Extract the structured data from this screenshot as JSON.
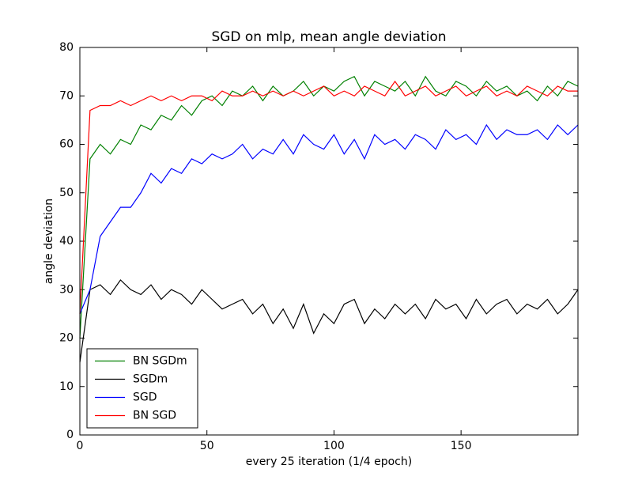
{
  "chart_data": {
    "type": "line",
    "title": "SGD on mlp, mean angle deviation",
    "x_label": "every 25 iteration (1/4 epoch)",
    "y_label": "angle deviation",
    "x": [
      0,
      4,
      8,
      12,
      16,
      20,
      24,
      28,
      32,
      36,
      40,
      44,
      48,
      52,
      56,
      60,
      64,
      68,
      72,
      76,
      80,
      84,
      88,
      92,
      96,
      100,
      104,
      108,
      112,
      116,
      120,
      124,
      128,
      132,
      136,
      140,
      144,
      148,
      152,
      156,
      160,
      164,
      168,
      172,
      176,
      180,
      184,
      188,
      192,
      196
    ],
    "series": [
      {
        "name": "BN SGDm",
        "color": "#008000",
        "values": [
          20,
          57,
          60,
          58,
          61,
          60,
          64,
          63,
          66,
          65,
          68,
          66,
          69,
          70,
          68,
          71,
          70,
          72,
          69,
          72,
          70,
          71,
          73,
          70,
          72,
          71,
          73,
          74,
          70,
          73,
          72,
          71,
          73,
          70,
          74,
          71,
          70,
          73,
          72,
          70,
          73,
          71,
          72,
          70,
          71,
          69,
          72,
          70,
          73,
          72
        ]
      },
      {
        "name": "SGDm",
        "color": "#000000",
        "values": [
          15,
          30,
          31,
          29,
          32,
          30,
          29,
          31,
          28,
          30,
          29,
          27,
          30,
          28,
          26,
          27,
          28,
          25,
          27,
          23,
          26,
          22,
          27,
          21,
          25,
          23,
          27,
          28,
          23,
          26,
          24,
          27,
          25,
          27,
          24,
          28,
          26,
          27,
          24,
          28,
          25,
          27,
          28,
          25,
          27,
          26,
          28,
          25,
          27,
          30
        ]
      },
      {
        "name": "SGD",
        "color": "#0000ff",
        "values": [
          25,
          30,
          41,
          44,
          47,
          47,
          50,
          54,
          52,
          55,
          54,
          57,
          56,
          58,
          57,
          58,
          60,
          57,
          59,
          58,
          61,
          58,
          62,
          60,
          59,
          62,
          58,
          61,
          57,
          62,
          60,
          61,
          59,
          62,
          61,
          59,
          63,
          61,
          62,
          60,
          64,
          61,
          63,
          62,
          62,
          63,
          61,
          64,
          62,
          64
        ]
      },
      {
        "name": "BN SGD",
        "color": "#ff0000",
        "values": [
          25,
          67,
          68,
          68,
          69,
          68,
          69,
          70,
          69,
          70,
          69,
          70,
          70,
          69,
          71,
          70,
          70,
          71,
          70,
          71,
          70,
          71,
          70,
          71,
          72,
          70,
          71,
          70,
          72,
          71,
          70,
          73,
          70,
          71,
          72,
          70,
          71,
          72,
          70,
          71,
          72,
          70,
          71,
          70,
          72,
          71,
          70,
          72,
          71,
          71
        ]
      }
    ],
    "xlim": [
      0,
      196
    ],
    "ylim": [
      0,
      80
    ],
    "xticks": [
      0,
      50,
      100,
      150
    ],
    "yticks": [
      0,
      10,
      20,
      30,
      40,
      50,
      60,
      70,
      80
    ],
    "legend": "lower left"
  }
}
